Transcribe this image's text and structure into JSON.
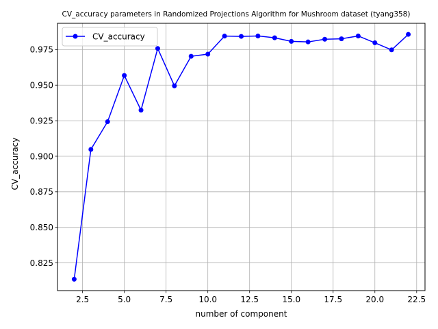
{
  "chart_data": {
    "type": "line",
    "title": "CV_accuracy parameters in Randomized Projections Algorithm for Mushroom dataset (tyang358)",
    "xlabel": "number of component",
    "ylabel": "CV_accuracy",
    "xlim": [
      1.0,
      23.0
    ],
    "ylim": [
      0.8055,
      0.9935
    ],
    "xticks": [
      2.5,
      5.0,
      7.5,
      10.0,
      12.5,
      15.0,
      17.5,
      20.0,
      22.5
    ],
    "xtick_labels": [
      "2.5",
      "5.0",
      "7.5",
      "10.0",
      "12.5",
      "15.0",
      "17.5",
      "20.0",
      "22.5"
    ],
    "yticks": [
      0.825,
      0.85,
      0.875,
      0.9,
      0.925,
      0.95,
      0.975
    ],
    "ytick_labels": [
      "0.825",
      "0.850",
      "0.875",
      "0.900",
      "0.925",
      "0.950",
      "0.975"
    ],
    "grid": true,
    "legend": "top-left",
    "series": [
      {
        "name": "CV_accuracy",
        "color": "#0000ff",
        "x": [
          2,
          3,
          4,
          5,
          6,
          7,
          8,
          9,
          10,
          11,
          12,
          13,
          14,
          15,
          16,
          17,
          18,
          19,
          20,
          21,
          22
        ],
        "y": [
          0.8135,
          0.9048,
          0.9243,
          0.9568,
          0.9324,
          0.9758,
          0.9495,
          0.9703,
          0.9718,
          0.9845,
          0.9843,
          0.9846,
          0.9833,
          0.9808,
          0.9804,
          0.9823,
          0.9826,
          0.9846,
          0.9798,
          0.9748,
          0.9857
        ]
      }
    ]
  }
}
